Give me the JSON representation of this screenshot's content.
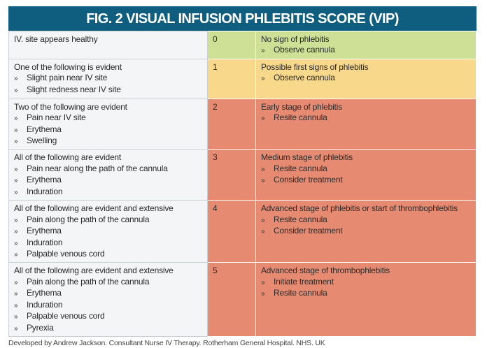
{
  "title": "FIG. 2 VISUAL INFUSION PHLEBITIS SCORE (VIP)",
  "colors": {
    "header": "#0f5e80",
    "score_0": "#cde096",
    "score_1": "#f8d88a",
    "score_2_5": "#e68b72",
    "criteria_bg": "#f3f5f6"
  },
  "rows": [
    {
      "criteria": "IV. site appears healthy",
      "items": [],
      "score": "0",
      "stage": "No sign of phlebitis",
      "actions": [
        "Observe cannula"
      ],
      "color": "#cde096"
    },
    {
      "criteria": "One of the following is evident",
      "items": [
        "Slight pain near IV site",
        "Slight redness near IV site"
      ],
      "score": "1",
      "stage": "Possible first signs of phlebitis",
      "actions": [
        "Observe cannula"
      ],
      "color": "#f8d88a"
    },
    {
      "criteria": "Two of the following are evident",
      "items": [
        "Pain near IV site",
        "Erythema",
        "Swelling"
      ],
      "score": "2",
      "stage": "Early stage of phlebitis",
      "actions": [
        "Resite cannula"
      ],
      "color": "#e68b72"
    },
    {
      "criteria": "All of the following are evident",
      "items": [
        "Pain near along the path of the cannula",
        "Erythema",
        "Induration"
      ],
      "score": "3",
      "stage": "Medium stage of phlebitis",
      "actions": [
        "Resite cannula",
        "Consider treatment"
      ],
      "color": "#e68b72"
    },
    {
      "criteria": "All of the following are evident and extensive",
      "items": [
        "Pain along the path of the cannula",
        "Erythema",
        "Induration",
        "Palpable venous cord"
      ],
      "score": "4",
      "stage": "Advanced stage of phlebitis or start of thrombophlebitis",
      "actions": [
        "Resite cannula",
        "Consider treatment"
      ],
      "color": "#e68b72"
    },
    {
      "criteria": "All of the following are evident and extensive",
      "items": [
        "Pain along the path of the cannula",
        "Erythema",
        "Induration",
        "Palpable venous cord",
        "Pyrexia"
      ],
      "score": "5",
      "stage": "Advanced stage of thrombophlebitis",
      "actions": [
        "Initiate treatment",
        "Resite cannula"
      ],
      "color": "#e68b72"
    }
  ],
  "footer": "Developed by Andrew Jackson. Consultant Nurse IV Therapy. Rotherham General Hospital. NHS. UK"
}
